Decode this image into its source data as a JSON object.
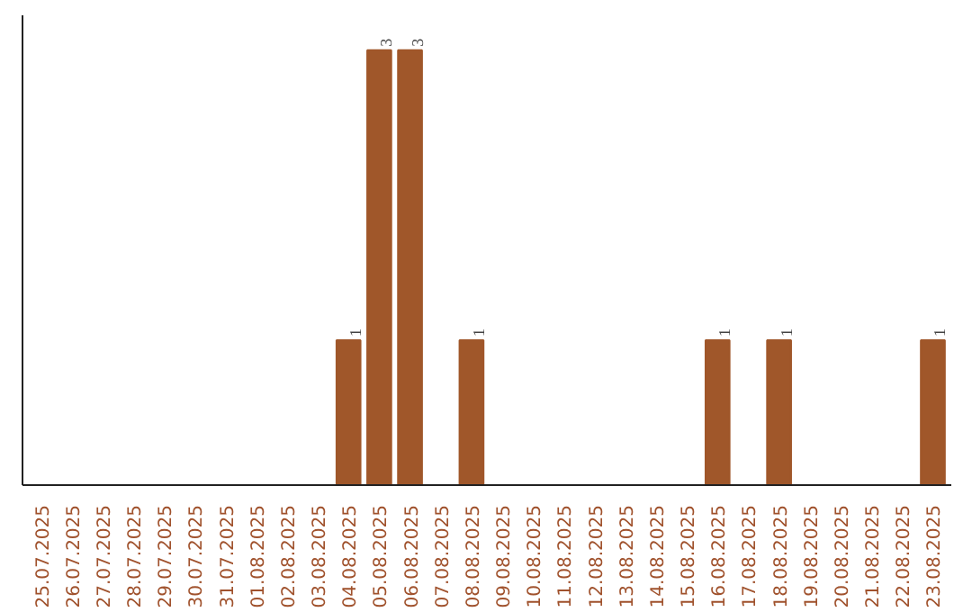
{
  "chart_data": {
    "type": "bar",
    "categories": [
      "25.07.2025",
      "26.07.2025",
      "27.07.2025",
      "28.07.2025",
      "29.07.2025",
      "30.07.2025",
      "31.07.2025",
      "01.08.2025",
      "02.08.2025",
      "03.08.2025",
      "04.08.2025",
      "05.08.2025",
      "06.08.2025",
      "07.08.2025",
      "08.08.2025",
      "09.08.2025",
      "10.08.2025",
      "11.08.2025",
      "12.08.2025",
      "13.08.2025",
      "14.08.2025",
      "15.08.2025",
      "16.08.2025",
      "17.08.2025",
      "18.08.2025",
      "19.08.2025",
      "20.08.2025",
      "21.08.2025",
      "22.08.2025",
      "23.08.2025"
    ],
    "values": [
      0,
      0,
      0,
      0,
      0,
      0,
      0,
      0,
      0,
      0,
      1,
      3,
      3,
      0,
      1,
      0,
      0,
      0,
      0,
      0,
      0,
      0,
      1,
      0,
      1,
      0,
      0,
      0,
      0,
      1
    ],
    "value_labels": [
      null,
      null,
      null,
      null,
      null,
      null,
      null,
      null,
      null,
      null,
      "1",
      "3",
      "3",
      null,
      "1",
      null,
      null,
      null,
      null,
      null,
      null,
      null,
      "1",
      null,
      "1",
      null,
      null,
      null,
      null,
      "1"
    ],
    "color": "#a0572a",
    "grid": false
  }
}
